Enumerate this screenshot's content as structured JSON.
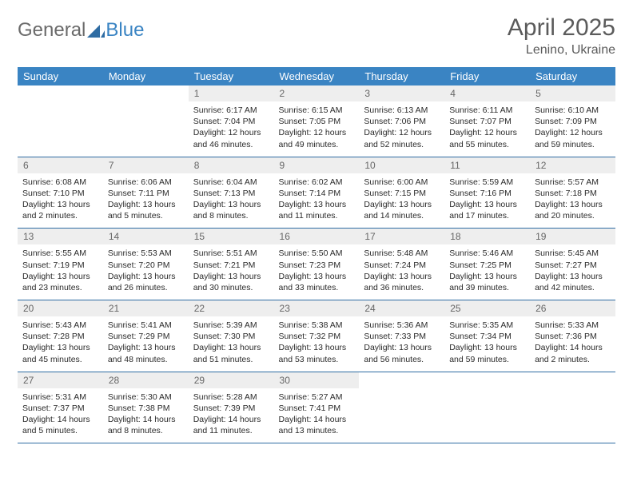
{
  "logo": {
    "text1": "General",
    "text2": "Blue",
    "text1_color": "#6a6a6a",
    "text2_color": "#3a84c3",
    "sail_color": "#2f6ca3"
  },
  "title": "April 2025",
  "location": "Lenino, Ukraine",
  "colors": {
    "header_bg": "#3a84c3",
    "header_text": "#ffffff",
    "daynum_bg": "#eeeeee",
    "daynum_text": "#666666",
    "border": "#2f6ca3",
    "body_text": "#2b2b2b"
  },
  "dow": [
    "Sunday",
    "Monday",
    "Tuesday",
    "Wednesday",
    "Thursday",
    "Friday",
    "Saturday"
  ],
  "weeks": [
    [
      null,
      null,
      {
        "n": "1",
        "sr": "6:17 AM",
        "ss": "7:04 PM",
        "dl": "12 hours and 46 minutes."
      },
      {
        "n": "2",
        "sr": "6:15 AM",
        "ss": "7:05 PM",
        "dl": "12 hours and 49 minutes."
      },
      {
        "n": "3",
        "sr": "6:13 AM",
        "ss": "7:06 PM",
        "dl": "12 hours and 52 minutes."
      },
      {
        "n": "4",
        "sr": "6:11 AM",
        "ss": "7:07 PM",
        "dl": "12 hours and 55 minutes."
      },
      {
        "n": "5",
        "sr": "6:10 AM",
        "ss": "7:09 PM",
        "dl": "12 hours and 59 minutes."
      }
    ],
    [
      {
        "n": "6",
        "sr": "6:08 AM",
        "ss": "7:10 PM",
        "dl": "13 hours and 2 minutes."
      },
      {
        "n": "7",
        "sr": "6:06 AM",
        "ss": "7:11 PM",
        "dl": "13 hours and 5 minutes."
      },
      {
        "n": "8",
        "sr": "6:04 AM",
        "ss": "7:13 PM",
        "dl": "13 hours and 8 minutes."
      },
      {
        "n": "9",
        "sr": "6:02 AM",
        "ss": "7:14 PM",
        "dl": "13 hours and 11 minutes."
      },
      {
        "n": "10",
        "sr": "6:00 AM",
        "ss": "7:15 PM",
        "dl": "13 hours and 14 minutes."
      },
      {
        "n": "11",
        "sr": "5:59 AM",
        "ss": "7:16 PM",
        "dl": "13 hours and 17 minutes."
      },
      {
        "n": "12",
        "sr": "5:57 AM",
        "ss": "7:18 PM",
        "dl": "13 hours and 20 minutes."
      }
    ],
    [
      {
        "n": "13",
        "sr": "5:55 AM",
        "ss": "7:19 PM",
        "dl": "13 hours and 23 minutes."
      },
      {
        "n": "14",
        "sr": "5:53 AM",
        "ss": "7:20 PM",
        "dl": "13 hours and 26 minutes."
      },
      {
        "n": "15",
        "sr": "5:51 AM",
        "ss": "7:21 PM",
        "dl": "13 hours and 30 minutes."
      },
      {
        "n": "16",
        "sr": "5:50 AM",
        "ss": "7:23 PM",
        "dl": "13 hours and 33 minutes."
      },
      {
        "n": "17",
        "sr": "5:48 AM",
        "ss": "7:24 PM",
        "dl": "13 hours and 36 minutes."
      },
      {
        "n": "18",
        "sr": "5:46 AM",
        "ss": "7:25 PM",
        "dl": "13 hours and 39 minutes."
      },
      {
        "n": "19",
        "sr": "5:45 AM",
        "ss": "7:27 PM",
        "dl": "13 hours and 42 minutes."
      }
    ],
    [
      {
        "n": "20",
        "sr": "5:43 AM",
        "ss": "7:28 PM",
        "dl": "13 hours and 45 minutes."
      },
      {
        "n": "21",
        "sr": "5:41 AM",
        "ss": "7:29 PM",
        "dl": "13 hours and 48 minutes."
      },
      {
        "n": "22",
        "sr": "5:39 AM",
        "ss": "7:30 PM",
        "dl": "13 hours and 51 minutes."
      },
      {
        "n": "23",
        "sr": "5:38 AM",
        "ss": "7:32 PM",
        "dl": "13 hours and 53 minutes."
      },
      {
        "n": "24",
        "sr": "5:36 AM",
        "ss": "7:33 PM",
        "dl": "13 hours and 56 minutes."
      },
      {
        "n": "25",
        "sr": "5:35 AM",
        "ss": "7:34 PM",
        "dl": "13 hours and 59 minutes."
      },
      {
        "n": "26",
        "sr": "5:33 AM",
        "ss": "7:36 PM",
        "dl": "14 hours and 2 minutes."
      }
    ],
    [
      {
        "n": "27",
        "sr": "5:31 AM",
        "ss": "7:37 PM",
        "dl": "14 hours and 5 minutes."
      },
      {
        "n": "28",
        "sr": "5:30 AM",
        "ss": "7:38 PM",
        "dl": "14 hours and 8 minutes."
      },
      {
        "n": "29",
        "sr": "5:28 AM",
        "ss": "7:39 PM",
        "dl": "14 hours and 11 minutes."
      },
      {
        "n": "30",
        "sr": "5:27 AM",
        "ss": "7:41 PM",
        "dl": "14 hours and 13 minutes."
      },
      null,
      null,
      null
    ]
  ],
  "labels": {
    "sunrise": "Sunrise: ",
    "sunset": "Sunset: ",
    "daylight": "Daylight: "
  }
}
